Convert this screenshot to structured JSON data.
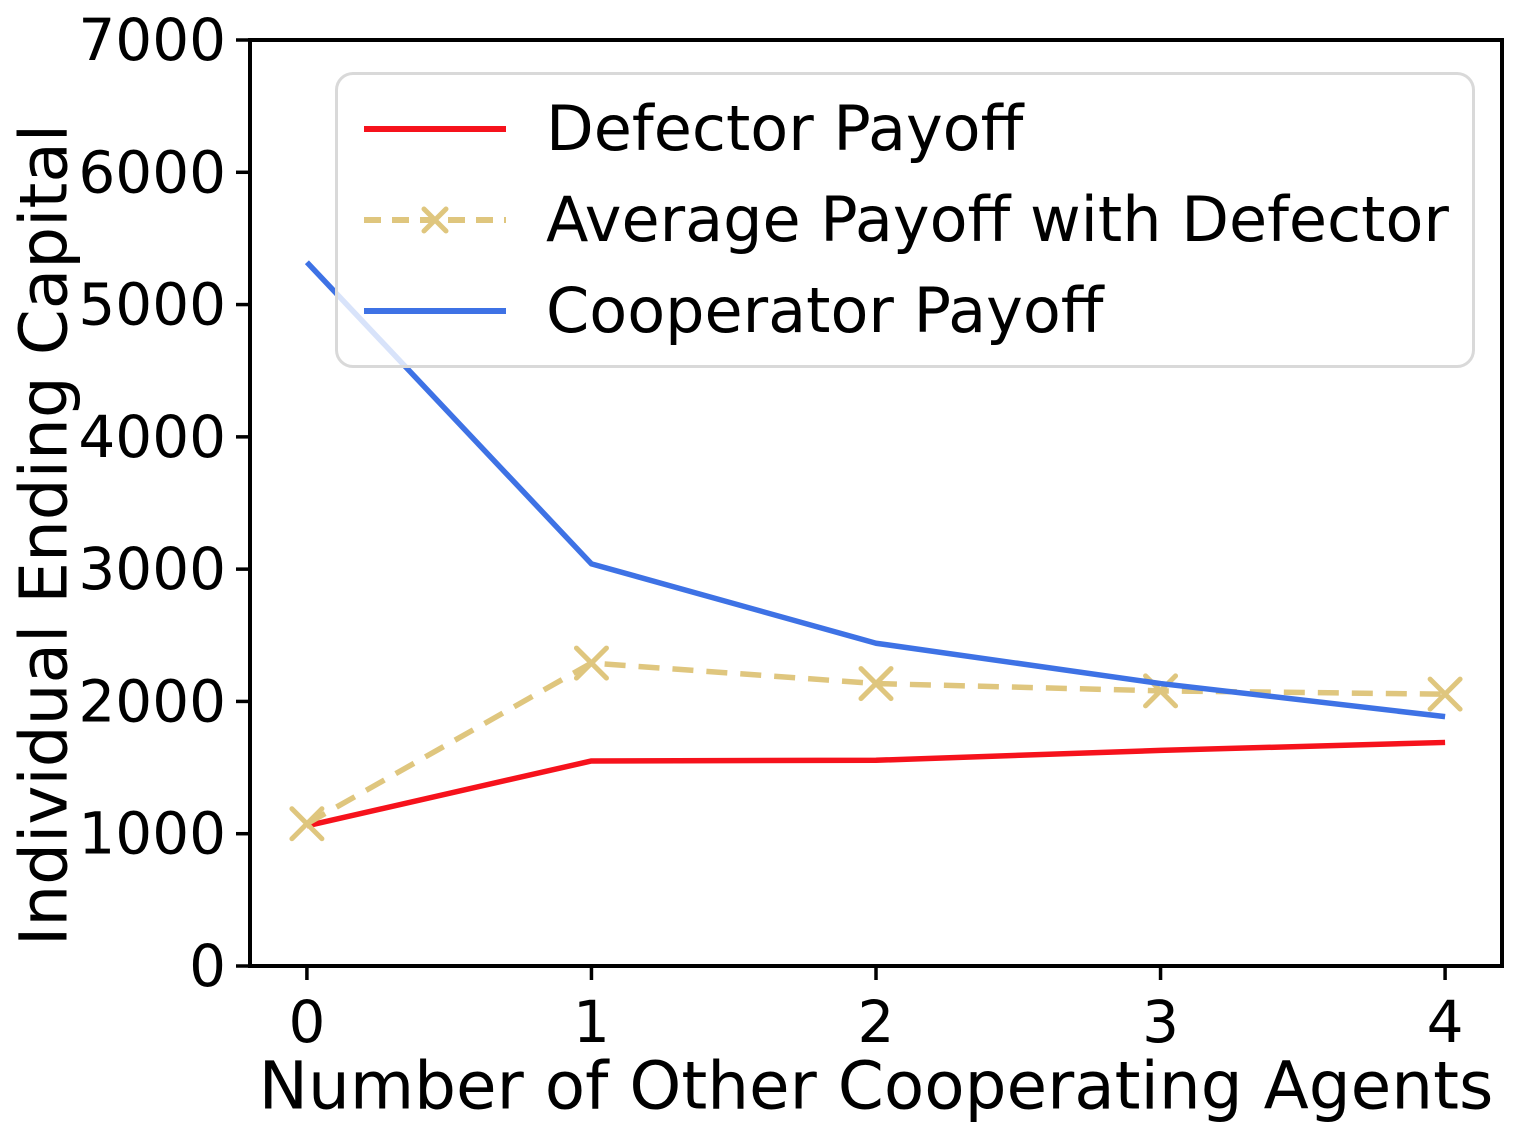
{
  "figure": {
    "type": "line-chart"
  },
  "legend": {
    "position": "upper left",
    "border_color": "#d9d9d9",
    "items": [
      {
        "label": "Defector Payoff",
        "color": "#f6121c",
        "style": "solid"
      },
      {
        "label": "Average Payoff with Defector",
        "color": "#dfc67e",
        "style": "dashed-x"
      },
      {
        "label": "Cooperator Payoff",
        "color": "#3e72e5",
        "style": "solid"
      }
    ]
  },
  "chart_data": {
    "type": "line",
    "title": "",
    "xlabel": "Number of Other Cooperating Agents",
    "ylabel": "Individual Ending Capital",
    "x": [
      0,
      1,
      2,
      3,
      4
    ],
    "series": [
      {
        "name": "Defector Payoff",
        "color": "#f6121c",
        "linestyle": "solid",
        "marker": "none",
        "values": [
          1060,
          1550,
          1555,
          1630,
          1690
        ]
      },
      {
        "name": "Average Payoff with Defector",
        "color": "#dfc67e",
        "linestyle": "dashed",
        "marker": "x",
        "values": [
          1075,
          2290,
          2135,
          2080,
          2055
        ]
      },
      {
        "name": "Cooperator Payoff",
        "color": "#3e72e5",
        "linestyle": "solid",
        "marker": "none",
        "values": [
          5320,
          3040,
          2440,
          2135,
          1885
        ]
      }
    ],
    "xticks": [
      0,
      1,
      2,
      3,
      4
    ],
    "yticks": [
      0,
      1000,
      2000,
      3000,
      4000,
      5000,
      6000,
      7000
    ],
    "xlim": [
      -0.2,
      4.2
    ],
    "ylim": [
      0,
      7000
    ],
    "grid": false,
    "legend_position": "upper left",
    "axis_color": "#000000"
  }
}
